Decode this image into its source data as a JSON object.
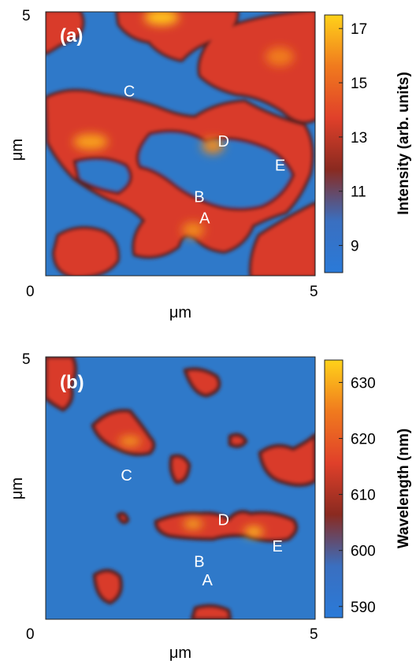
{
  "chart_data": [
    {
      "type": "heatmap",
      "panel_label": "(a)",
      "x_ticks": [
        "0",
        "5"
      ],
      "y_ticks": [
        "5"
      ],
      "xlabel": "μm",
      "ylabel": "μm",
      "xlim": [
        0,
        5
      ],
      "ylim": [
        0,
        5
      ],
      "colorbar": {
        "label": "Intensity (arb. units)",
        "ticks": [
          17,
          15,
          13,
          11,
          9
        ],
        "range": [
          8,
          17.5
        ],
        "stops": [
          "#2a7ad8",
          "#3a6fc0",
          "#8a2a20",
          "#e0402a",
          "#f07a1e",
          "#ffd21a"
        ]
      },
      "annotations": [
        {
          "text": "C",
          "x": 1.55,
          "y": 3.5
        },
        {
          "text": "D",
          "x": 3.3,
          "y": 2.55
        },
        {
          "text": "E",
          "x": 4.35,
          "y": 2.1
        },
        {
          "text": "B",
          "x": 2.85,
          "y": 1.5
        },
        {
          "text": "A",
          "x": 2.95,
          "y": 1.1
        }
      ]
    },
    {
      "type": "heatmap",
      "panel_label": "(b)",
      "x_ticks": [
        "0",
        "5"
      ],
      "y_ticks": [
        "5"
      ],
      "xlabel": "μm",
      "ylabel": "μm",
      "xlim": [
        0,
        5
      ],
      "ylim": [
        0,
        5
      ],
      "colorbar": {
        "label": "Wavelength (nm)",
        "ticks": [
          630,
          620,
          610,
          600,
          590
        ],
        "range": [
          588,
          634
        ],
        "stops": [
          "#2a7ad8",
          "#3a6fc0",
          "#8a2a20",
          "#e0402a",
          "#f07a1e",
          "#ffd21a"
        ]
      },
      "annotations": [
        {
          "text": "C",
          "x": 1.5,
          "y": 2.75
        },
        {
          "text": "D",
          "x": 3.3,
          "y": 1.9
        },
        {
          "text": "E",
          "x": 4.3,
          "y": 1.4
        },
        {
          "text": "B",
          "x": 2.85,
          "y": 1.1
        },
        {
          "text": "A",
          "x": 3.0,
          "y": 0.75
        }
      ]
    }
  ],
  "colors": {
    "map_low": "#2f79c9",
    "map_high": "#d8362a",
    "boundary": "#5a2a2a"
  }
}
